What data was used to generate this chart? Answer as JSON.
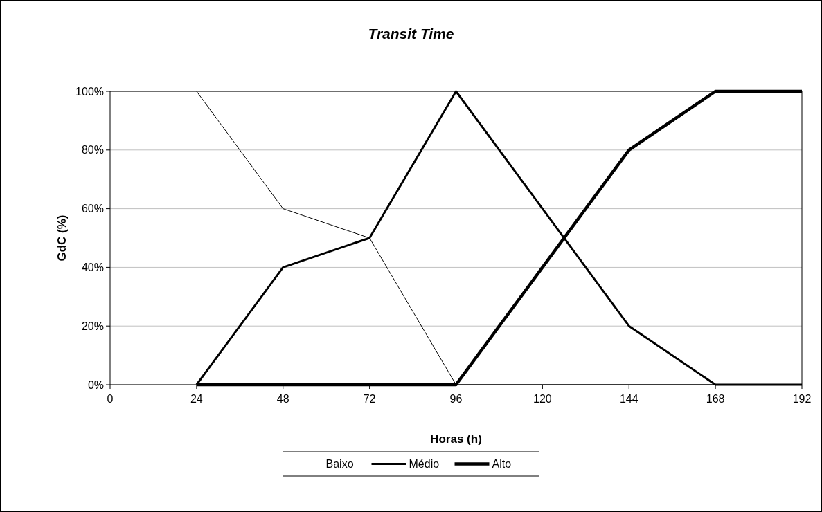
{
  "chart_data": {
    "type": "line",
    "title": "Transit Time",
    "xlabel": "Horas (h)",
    "ylabel": "GdC (%)",
    "x": [
      24,
      48,
      72,
      96,
      120,
      144,
      168,
      192
    ],
    "series": [
      {
        "name": "Baixo",
        "color": "#000000",
        "values": [
          100,
          60,
          50,
          0,
          0,
          0,
          0,
          0
        ]
      },
      {
        "name": "Médio",
        "color": "#000000",
        "values": [
          0,
          40,
          50,
          100,
          60,
          20,
          0,
          0
        ]
      },
      {
        "name": "Alto",
        "color": "#000000",
        "values": [
          0,
          0,
          0,
          0,
          40,
          80,
          100,
          100
        ]
      }
    ],
    "xlim": [
      0,
      192
    ],
    "xticks": [
      0,
      24,
      48,
      72,
      96,
      120,
      144,
      168,
      192
    ],
    "ylim": [
      0,
      100
    ],
    "yticks": [
      {
        "value": 0,
        "label": "0%"
      },
      {
        "value": 20,
        "label": "20%"
      },
      {
        "value": 40,
        "label": "40%"
      },
      {
        "value": 60,
        "label": "60%"
      },
      {
        "value": 80,
        "label": "80%"
      },
      {
        "value": 100,
        "label": "100%"
      }
    ],
    "grid": "y",
    "legend": "bottom",
    "marker": "none",
    "line_style": "solid"
  }
}
